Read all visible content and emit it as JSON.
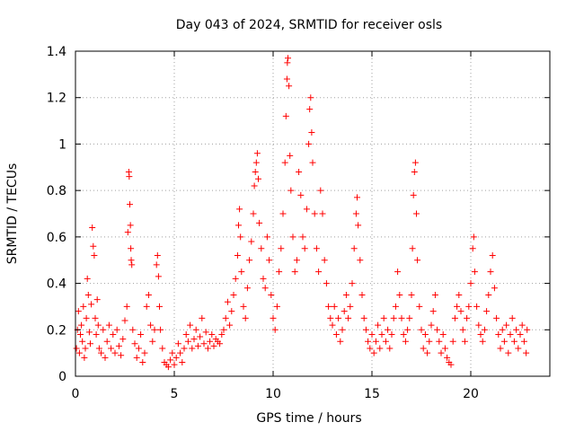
{
  "chart_data": {
    "type": "scatter",
    "title": "Day 043 of 2024, SRMTID for receiver osls",
    "xlabel": "GPS time / hours",
    "ylabel": "SRMTID / TECUs",
    "xlim": [
      0,
      24
    ],
    "ylim": [
      0,
      1.4
    ],
    "xticks": [
      0,
      5,
      10,
      15,
      20
    ],
    "xtick_labels": [
      "0",
      "5",
      "10",
      "15",
      "20"
    ],
    "yticks": [
      0,
      0.2,
      0.4,
      0.6,
      0.8,
      1,
      1.2,
      1.4
    ],
    "ytick_labels": [
      "0",
      "0.2",
      "0.4",
      "0.6",
      "0.8",
      "1",
      "1.2",
      "1.4"
    ],
    "grid": true,
    "marker": "+",
    "color": "#ff0000",
    "series": [
      {
        "name": "SRMTID",
        "points": [
          [
            0.05,
            0.12
          ],
          [
            0.1,
            0.2
          ],
          [
            0.15,
            0.28
          ],
          [
            0.2,
            0.1
          ],
          [
            0.25,
            0.18
          ],
          [
            0.3,
            0.22
          ],
          [
            0.35,
            0.15
          ],
          [
            0.4,
            0.3
          ],
          [
            0.45,
            0.08
          ],
          [
            0.5,
            0.12
          ],
          [
            0.55,
            0.25
          ],
          [
            0.6,
            0.42
          ],
          [
            0.65,
            0.35
          ],
          [
            0.7,
            0.19
          ],
          [
            0.75,
            0.14
          ],
          [
            0.8,
            0.31
          ],
          [
            0.85,
            0.64
          ],
          [
            0.9,
            0.56
          ],
          [
            0.95,
            0.52
          ],
          [
            1.0,
            0.25
          ],
          [
            1.05,
            0.18
          ],
          [
            1.1,
            0.33
          ],
          [
            1.15,
            0.22
          ],
          [
            1.2,
            0.12
          ],
          [
            1.3,
            0.1
          ],
          [
            1.4,
            0.2
          ],
          [
            1.5,
            0.08
          ],
          [
            1.6,
            0.15
          ],
          [
            1.7,
            0.22
          ],
          [
            1.8,
            0.12
          ],
          [
            1.9,
            0.18
          ],
          [
            2.0,
            0.1
          ],
          [
            2.1,
            0.2
          ],
          [
            2.2,
            0.13
          ],
          [
            2.3,
            0.09
          ],
          [
            2.4,
            0.16
          ],
          [
            2.5,
            0.24
          ],
          [
            2.6,
            0.3
          ],
          [
            2.65,
            0.62
          ],
          [
            2.7,
            0.88
          ],
          [
            2.72,
            0.86
          ],
          [
            2.75,
            0.74
          ],
          [
            2.78,
            0.65
          ],
          [
            2.8,
            0.55
          ],
          [
            2.82,
            0.5
          ],
          [
            2.85,
            0.48
          ],
          [
            2.9,
            0.2
          ],
          [
            3.0,
            0.14
          ],
          [
            3.1,
            0.08
          ],
          [
            3.2,
            0.12
          ],
          [
            3.3,
            0.18
          ],
          [
            3.4,
            0.06
          ],
          [
            3.5,
            0.1
          ],
          [
            3.6,
            0.3
          ],
          [
            3.7,
            0.35
          ],
          [
            3.8,
            0.22
          ],
          [
            3.9,
            0.15
          ],
          [
            4.0,
            0.2
          ],
          [
            4.1,
            0.48
          ],
          [
            4.15,
            0.52
          ],
          [
            4.2,
            0.43
          ],
          [
            4.25,
            0.3
          ],
          [
            4.3,
            0.2
          ],
          [
            4.4,
            0.12
          ],
          [
            4.5,
            0.06
          ],
          [
            4.6,
            0.05
          ],
          [
            4.7,
            0.04
          ],
          [
            4.8,
            0.07
          ],
          [
            4.9,
            0.1
          ],
          [
            5.0,
            0.05
          ],
          [
            5.1,
            0.08
          ],
          [
            5.2,
            0.14
          ],
          [
            5.3,
            0.1
          ],
          [
            5.4,
            0.06
          ],
          [
            5.5,
            0.12
          ],
          [
            5.6,
            0.18
          ],
          [
            5.7,
            0.15
          ],
          [
            5.8,
            0.22
          ],
          [
            5.9,
            0.12
          ],
          [
            6.0,
            0.16
          ],
          [
            6.1,
            0.2
          ],
          [
            6.2,
            0.13
          ],
          [
            6.3,
            0.17
          ],
          [
            6.4,
            0.25
          ],
          [
            6.5,
            0.14
          ],
          [
            6.6,
            0.19
          ],
          [
            6.7,
            0.12
          ],
          [
            6.8,
            0.15
          ],
          [
            6.9,
            0.18
          ],
          [
            7.0,
            0.13
          ],
          [
            7.1,
            0.16
          ],
          [
            7.2,
            0.15
          ],
          [
            7.3,
            0.14
          ],
          [
            7.4,
            0.18
          ],
          [
            7.5,
            0.2
          ],
          [
            7.6,
            0.25
          ],
          [
            7.7,
            0.32
          ],
          [
            7.8,
            0.22
          ],
          [
            7.9,
            0.28
          ],
          [
            8.0,
            0.35
          ],
          [
            8.1,
            0.42
          ],
          [
            8.2,
            0.52
          ],
          [
            8.25,
            0.65
          ],
          [
            8.3,
            0.72
          ],
          [
            8.35,
            0.6
          ],
          [
            8.4,
            0.45
          ],
          [
            8.5,
            0.3
          ],
          [
            8.6,
            0.25
          ],
          [
            8.7,
            0.38
          ],
          [
            8.8,
            0.5
          ],
          [
            8.9,
            0.58
          ],
          [
            9.0,
            0.7
          ],
          [
            9.05,
            0.82
          ],
          [
            9.1,
            0.88
          ],
          [
            9.15,
            0.92
          ],
          [
            9.2,
            0.96
          ],
          [
            9.25,
            0.85
          ],
          [
            9.3,
            0.66
          ],
          [
            9.4,
            0.55
          ],
          [
            9.5,
            0.42
          ],
          [
            9.6,
            0.38
          ],
          [
            9.7,
            0.6
          ],
          [
            9.8,
            0.5
          ],
          [
            9.9,
            0.35
          ],
          [
            10.0,
            0.25
          ],
          [
            10.1,
            0.2
          ],
          [
            10.2,
            0.3
          ],
          [
            10.3,
            0.45
          ],
          [
            10.4,
            0.55
          ],
          [
            10.5,
            0.7
          ],
          [
            10.6,
            0.92
          ],
          [
            10.65,
            1.12
          ],
          [
            10.7,
            1.28
          ],
          [
            10.72,
            1.35
          ],
          [
            10.75,
            1.37
          ],
          [
            10.8,
            1.25
          ],
          [
            10.85,
            0.95
          ],
          [
            10.9,
            0.8
          ],
          [
            11.0,
            0.6
          ],
          [
            11.1,
            0.45
          ],
          [
            11.2,
            0.5
          ],
          [
            11.3,
            0.88
          ],
          [
            11.4,
            0.78
          ],
          [
            11.5,
            0.6
          ],
          [
            11.6,
            0.55
          ],
          [
            11.7,
            0.72
          ],
          [
            11.8,
            1.0
          ],
          [
            11.85,
            1.15
          ],
          [
            11.9,
            1.2
          ],
          [
            11.95,
            1.05
          ],
          [
            12.0,
            0.92
          ],
          [
            12.1,
            0.7
          ],
          [
            12.2,
            0.55
          ],
          [
            12.3,
            0.45
          ],
          [
            12.4,
            0.8
          ],
          [
            12.5,
            0.7
          ],
          [
            12.6,
            0.5
          ],
          [
            12.7,
            0.4
          ],
          [
            12.8,
            0.3
          ],
          [
            12.9,
            0.25
          ],
          [
            13.0,
            0.22
          ],
          [
            13.1,
            0.3
          ],
          [
            13.2,
            0.18
          ],
          [
            13.3,
            0.25
          ],
          [
            13.4,
            0.15
          ],
          [
            13.5,
            0.2
          ],
          [
            13.6,
            0.28
          ],
          [
            13.7,
            0.35
          ],
          [
            13.8,
            0.25
          ],
          [
            13.9,
            0.3
          ],
          [
            14.0,
            0.4
          ],
          [
            14.1,
            0.55
          ],
          [
            14.2,
            0.7
          ],
          [
            14.25,
            0.77
          ],
          [
            14.3,
            0.65
          ],
          [
            14.4,
            0.5
          ],
          [
            14.5,
            0.35
          ],
          [
            14.6,
            0.25
          ],
          [
            14.7,
            0.2
          ],
          [
            14.8,
            0.15
          ],
          [
            14.9,
            0.12
          ],
          [
            15.0,
            0.18
          ],
          [
            15.1,
            0.1
          ],
          [
            15.2,
            0.15
          ],
          [
            15.3,
            0.22
          ],
          [
            15.4,
            0.12
          ],
          [
            15.5,
            0.18
          ],
          [
            15.6,
            0.25
          ],
          [
            15.7,
            0.15
          ],
          [
            15.8,
            0.2
          ],
          [
            15.9,
            0.12
          ],
          [
            16.0,
            0.18
          ],
          [
            16.1,
            0.25
          ],
          [
            16.2,
            0.3
          ],
          [
            16.3,
            0.45
          ],
          [
            16.4,
            0.35
          ],
          [
            16.5,
            0.25
          ],
          [
            16.6,
            0.18
          ],
          [
            16.7,
            0.15
          ],
          [
            16.8,
            0.2
          ],
          [
            16.9,
            0.25
          ],
          [
            17.0,
            0.35
          ],
          [
            17.05,
            0.55
          ],
          [
            17.1,
            0.78
          ],
          [
            17.15,
            0.88
          ],
          [
            17.2,
            0.92
          ],
          [
            17.25,
            0.7
          ],
          [
            17.3,
            0.5
          ],
          [
            17.4,
            0.3
          ],
          [
            17.5,
            0.2
          ],
          [
            17.6,
            0.12
          ],
          [
            17.7,
            0.18
          ],
          [
            17.8,
            0.1
          ],
          [
            17.9,
            0.15
          ],
          [
            18.0,
            0.22
          ],
          [
            18.1,
            0.28
          ],
          [
            18.2,
            0.35
          ],
          [
            18.3,
            0.2
          ],
          [
            18.4,
            0.15
          ],
          [
            18.5,
            0.1
          ],
          [
            18.6,
            0.18
          ],
          [
            18.7,
            0.12
          ],
          [
            18.8,
            0.08
          ],
          [
            18.9,
            0.06
          ],
          [
            19.0,
            0.05
          ],
          [
            19.1,
            0.15
          ],
          [
            19.2,
            0.25
          ],
          [
            19.3,
            0.3
          ],
          [
            19.4,
            0.35
          ],
          [
            19.5,
            0.28
          ],
          [
            19.6,
            0.2
          ],
          [
            19.7,
            0.15
          ],
          [
            19.8,
            0.25
          ],
          [
            19.9,
            0.3
          ],
          [
            20.0,
            0.4
          ],
          [
            20.1,
            0.55
          ],
          [
            20.15,
            0.6
          ],
          [
            20.2,
            0.45
          ],
          [
            20.3,
            0.3
          ],
          [
            20.4,
            0.22
          ],
          [
            20.5,
            0.18
          ],
          [
            20.6,
            0.15
          ],
          [
            20.7,
            0.2
          ],
          [
            20.8,
            0.28
          ],
          [
            20.9,
            0.35
          ],
          [
            21.0,
            0.45
          ],
          [
            21.1,
            0.52
          ],
          [
            21.2,
            0.38
          ],
          [
            21.3,
            0.25
          ],
          [
            21.4,
            0.18
          ],
          [
            21.5,
            0.12
          ],
          [
            21.6,
            0.2
          ],
          [
            21.7,
            0.15
          ],
          [
            21.8,
            0.22
          ],
          [
            21.9,
            0.1
          ],
          [
            22.0,
            0.18
          ],
          [
            22.1,
            0.25
          ],
          [
            22.2,
            0.15
          ],
          [
            22.3,
            0.2
          ],
          [
            22.4,
            0.12
          ],
          [
            22.5,
            0.18
          ],
          [
            22.6,
            0.22
          ],
          [
            22.7,
            0.15
          ],
          [
            22.8,
            0.1
          ],
          [
            22.85,
            0.2
          ]
        ]
      }
    ]
  }
}
